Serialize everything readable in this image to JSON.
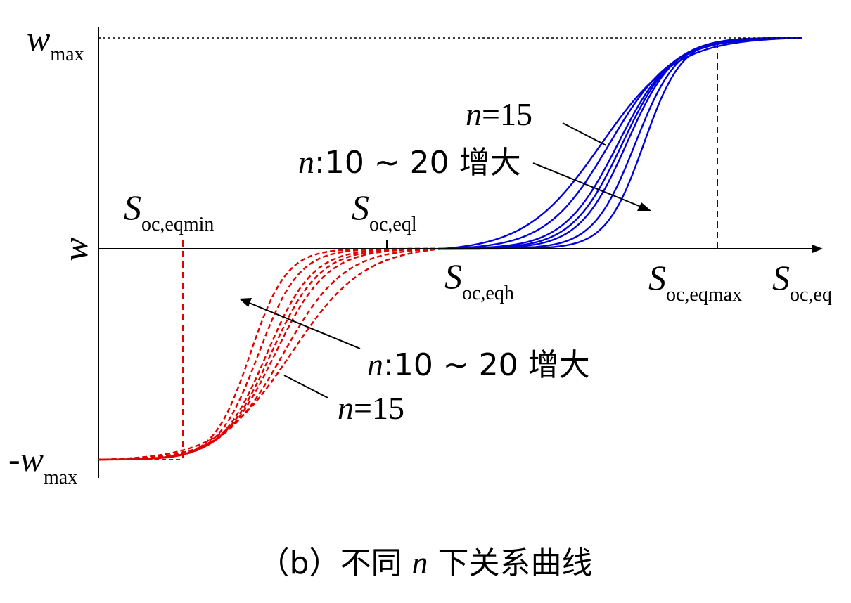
{
  "caption": {
    "prefix": "（b）不同",
    "var": "n",
    "suffix": "下关系曲线"
  },
  "chart_data": {
    "type": "line",
    "title": "",
    "xlabel": {
      "main": "S",
      "sub": "oc,eq"
    },
    "ylabel": "w",
    "y_ticks": {
      "top": {
        "main": "w",
        "sub": "max"
      },
      "bottom": {
        "main": "-w",
        "sub": "max"
      }
    },
    "x_markers": [
      {
        "main": "S",
        "sub": "oc,eqmin",
        "x": 0.12,
        "style": "dashed",
        "color": "#e00000"
      },
      {
        "main": "S",
        "sub": "oc,eql",
        "x": 0.41,
        "style": "tick",
        "color": "#000000"
      },
      {
        "main": "S",
        "sub": "oc,eqh",
        "x": 0.49,
        "style": "none",
        "color": "#000000"
      },
      {
        "main": "S",
        "sub": "oc,eqmax",
        "x": 0.88,
        "style": "dashed",
        "color": "#0000cc"
      }
    ],
    "xlim": [
      0,
      1.05
    ],
    "ylim": [
      -1,
      1
    ],
    "wmax": 1,
    "n_values": [
      10,
      12,
      14,
      15,
      16,
      18,
      20
    ],
    "positive_branch": {
      "color": "#0000dd",
      "style": "solid",
      "domain": [
        0.49,
        1.0
      ],
      "label_n": {
        "var": "n",
        "text": "=15"
      },
      "label_range": {
        "var": "n",
        "text": ":10 ~ 20 增大"
      }
    },
    "negative_branch": {
      "color": "#e00000",
      "style": "dashed",
      "domain": [
        0.0,
        0.49
      ],
      "label_n": {
        "var": "n",
        "text": "=15"
      },
      "label_range": {
        "var": "n",
        "text": ":10 ~ 20 增大"
      }
    },
    "grid": false,
    "legend": "none"
  }
}
